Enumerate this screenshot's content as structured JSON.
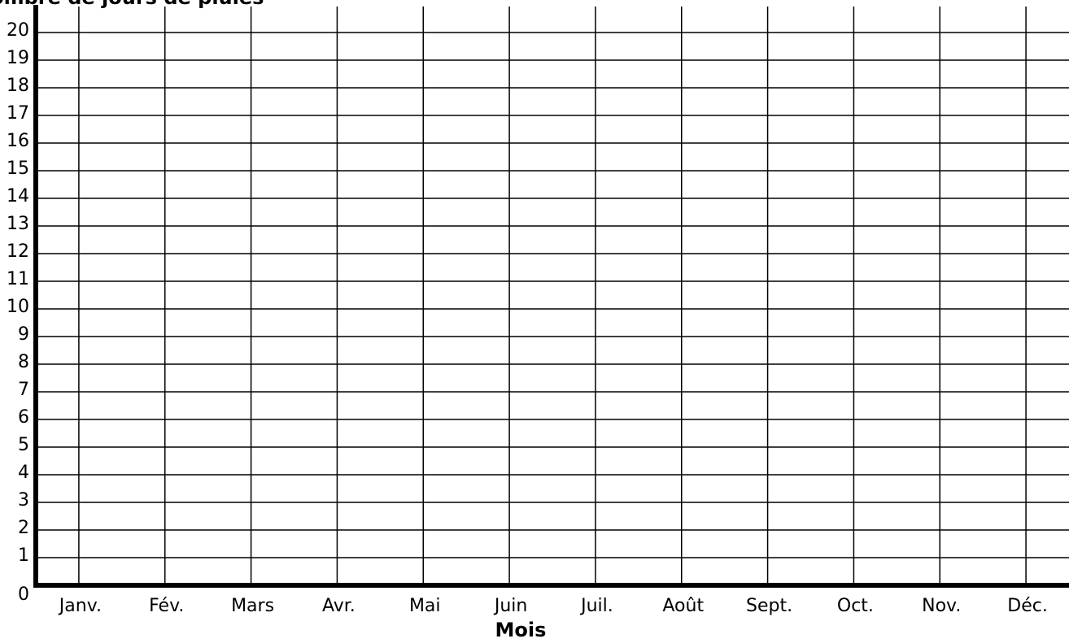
{
  "chart_data": {
    "type": "bar",
    "title": "Nombre de jours de pluies",
    "x_label": "Mois",
    "categories": [
      "Janv.",
      "Fév.",
      "Mars",
      "Avr.",
      "Mai",
      "Juin",
      "Juil.",
      "Août",
      "Sept.",
      "Oct.",
      "Nov.",
      "Déc."
    ],
    "ylim": [
      0,
      20
    ],
    "yticks": [
      0,
      1,
      2,
      3,
      4,
      5,
      6,
      7,
      8,
      9,
      10,
      11,
      12,
      13,
      14,
      15,
      16,
      17,
      18,
      19,
      20
    ],
    "grid": true
  }
}
